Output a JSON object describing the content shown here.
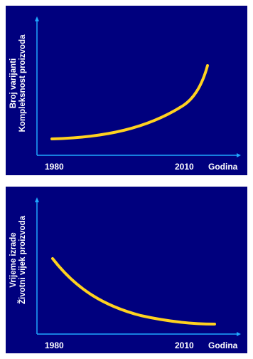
{
  "chart_data": [
    {
      "type": "line",
      "ylabel": [
        "Broj varijanti",
        "Kompleksnost proizvoda"
      ],
      "x_ticks": [
        "1980",
        "2010"
      ],
      "xlabel": "Godina",
      "trend": "increasing",
      "series_color": "#ffd21f",
      "axis_color": "#1fa8ff",
      "background": "#00007e"
    },
    {
      "type": "line",
      "ylabel": [
        "Vrijeme izrade",
        "Životni vijek proizvoda"
      ],
      "x_ticks": [
        "1980",
        "2010"
      ],
      "xlabel": "Godina",
      "trend": "decreasing",
      "series_color": "#ffd21f",
      "axis_color": "#1fa8ff",
      "background": "#00007e"
    }
  ]
}
